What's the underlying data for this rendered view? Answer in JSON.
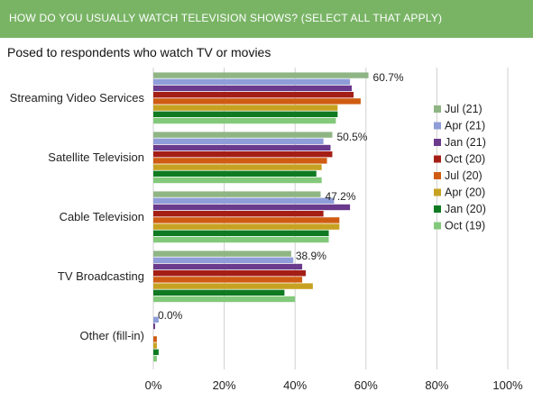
{
  "header": {
    "title": "HOW DO YOU USUALLY WATCH TELEVISION SHOWS? (SELECT ALL THAT APPLY)"
  },
  "subtitle": "Posed to respondents who watch TV or movies",
  "colors": {
    "header_bg": "#79b465",
    "gridline": "#d0d0d0"
  },
  "chart_data": {
    "type": "bar",
    "orientation": "horizontal",
    "title": "HOW DO YOU USUALLY WATCH TELEVISION SHOWS? (SELECT ALL THAT APPLY)",
    "subtitle": "Posed to respondents who watch TV or movies",
    "xlabel": "",
    "ylabel": "",
    "categories": [
      "Streaming Video Services",
      "Satellite Television",
      "Cable Television",
      "TV Broadcasting",
      "Other (fill-in)"
    ],
    "xlim": [
      0,
      100
    ],
    "ticks": [
      "0%",
      "20%",
      "40%",
      "60%",
      "80%",
      "100%"
    ],
    "grid": true,
    "legend_position": "right",
    "series": [
      {
        "name": "Jul (21)",
        "color": "#8fb584",
        "values": [
          60.7,
          50.5,
          47.2,
          38.9,
          0.0
        ]
      },
      {
        "name": "Apr (21)",
        "color": "#8f9ed8",
        "values": [
          55.5,
          48.0,
          51.0,
          39.5,
          1.5
        ]
      },
      {
        "name": "Jan (21)",
        "color": "#6a3a8c",
        "values": [
          56.0,
          50.0,
          55.5,
          42.0,
          0.5
        ]
      },
      {
        "name": "Oct (20)",
        "color": "#a51e16",
        "values": [
          56.5,
          50.5,
          48.0,
          43.0,
          0.0
        ]
      },
      {
        "name": "Jul (20)",
        "color": "#cf5c12",
        "values": [
          58.5,
          49.0,
          52.5,
          42.0,
          1.0
        ]
      },
      {
        "name": "Apr (20)",
        "color": "#c7a222",
        "values": [
          52.0,
          47.5,
          52.5,
          45.0,
          1.0
        ]
      },
      {
        "name": "Jan (20)",
        "color": "#107a22",
        "values": [
          52.0,
          46.0,
          49.5,
          37.0,
          1.5
        ]
      },
      {
        "name": "Oct (19)",
        "color": "#83c97b",
        "values": [
          51.5,
          47.5,
          49.5,
          40.0,
          1.0
        ]
      }
    ],
    "data_labels": [
      {
        "category": "Streaming Video Services",
        "text": "60.7%"
      },
      {
        "category": "Satellite Television",
        "text": "50.5%"
      },
      {
        "category": "Cable Television",
        "text": "47.2%"
      },
      {
        "category": "TV Broadcasting",
        "text": "38.9%"
      },
      {
        "category": "Other (fill-in)",
        "text": "0.0%"
      }
    ]
  }
}
